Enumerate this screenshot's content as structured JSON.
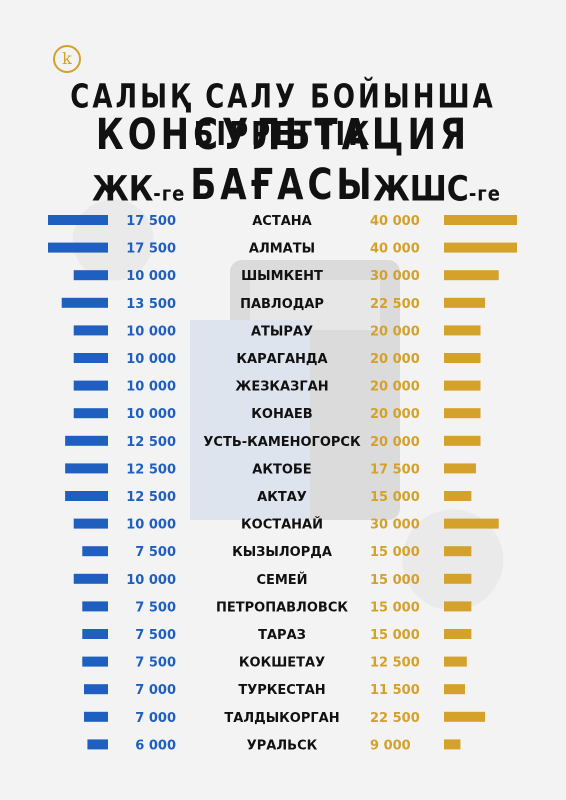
{
  "header": {
    "title_line1": "САЛЫҚ САЛУ БОЙЫНША БІРРЕТТІК",
    "title_line2": "КОНСУЛЬТАЦИЯ БАҒАСЫ",
    "logo_letter": "k"
  },
  "columns": {
    "left_main": "ЖК",
    "left_suffix": "-ге",
    "right_main": "ЖШС",
    "right_suffix": "-ге"
  },
  "colors": {
    "left_bar": "#1f5fbf",
    "left_text": "#1f5fbf",
    "right_bar": "#d4a12a",
    "right_text": "#d4a12a",
    "city_text": "#111111",
    "logo": "#d4a12a"
  },
  "chart_data": {
    "type": "bar",
    "categories": [
      "АСТАНА",
      "АЛМАТЫ",
      "ШЫМКЕНТ",
      "ПАВЛОДАР",
      "АТЫРАУ",
      "КАРАГАНДА",
      "ЖЕЗКАЗГАН",
      "КОНАЕВ",
      "УСТЬ-КАМЕНОГОРСК",
      "АКТОБЕ",
      "АКТАУ",
      "КОСТАНАЙ",
      "КЫЗЫЛОРДА",
      "СЕМЕЙ",
      "ПЕТРОПАВЛОВСК",
      "ТАРАЗ",
      "КОКШЕТАУ",
      "ТУРКЕСТАН",
      "ТАЛДЫКОРГАН",
      "УРАЛЬСК"
    ],
    "series": [
      {
        "name": "ЖК-ге",
        "values": [
          17500,
          17500,
          10000,
          13500,
          10000,
          10000,
          10000,
          10000,
          12500,
          12500,
          12500,
          10000,
          7500,
          10000,
          7500,
          7500,
          7500,
          7000,
          7000,
          6000
        ],
        "labels": [
          "17 500",
          "17 500",
          "10 000",
          "13 500",
          "10 000",
          "10 000",
          "10 000",
          "10 000",
          "12 500",
          "12 500",
          "12 500",
          "10 000",
          "7 500",
          "10 000",
          "7 500",
          "7 500",
          "7 500",
          "7 000",
          "7 000",
          "6 000"
        ]
      },
      {
        "name": "ЖШС-ге",
        "values": [
          40000,
          40000,
          30000,
          22500,
          20000,
          20000,
          20000,
          20000,
          20000,
          17500,
          15000,
          30000,
          15000,
          15000,
          15000,
          15000,
          12500,
          11500,
          22500,
          9000
        ],
        "labels": [
          "40 000",
          "40 000",
          "30 000",
          "22 500",
          "20 000",
          "20 000",
          "20 000",
          "20 000",
          "20 000",
          "17 500",
          "15 000",
          "30 000",
          "15 000",
          "15 000",
          "15 000",
          "15 000",
          "12 500",
          "11 500",
          "22 500",
          "9 000"
        ]
      }
    ]
  }
}
